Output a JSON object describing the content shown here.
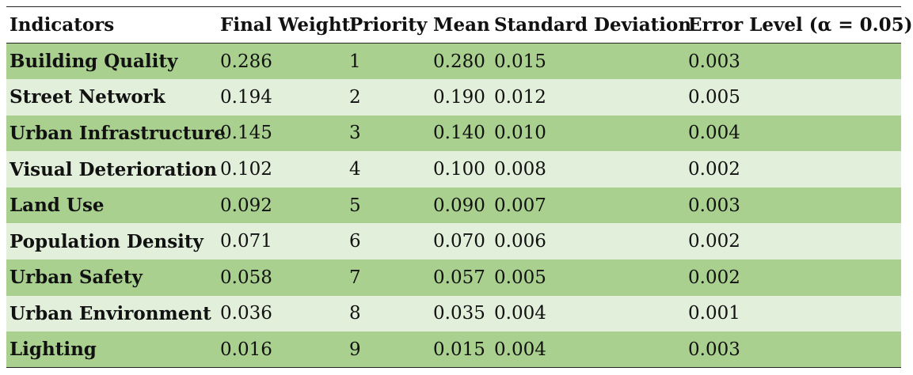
{
  "table": {
    "headers": [
      "Indicators",
      "Final Weight",
      "Priority",
      "Mean",
      "Standard Deviation",
      "Error Level (α = 0.05)"
    ],
    "rows": [
      [
        "Building Quality",
        "0.286",
        "1",
        "0.280",
        "0.015",
        "0.003"
      ],
      [
        "Street Network",
        "0.194",
        "2",
        "0.190",
        "0.012",
        "0.005"
      ],
      [
        "Urban Infrastructure",
        "0.145",
        "3",
        "0.140",
        "0.010",
        "0.004"
      ],
      [
        "Visual Deterioration",
        "0.102",
        "4",
        "0.100",
        "0.008",
        "0.002"
      ],
      [
        "Land Use",
        "0.092",
        "5",
        "0.090",
        "0.007",
        "0.003"
      ],
      [
        "Population Density",
        "0.071",
        "6",
        "0.070",
        "0.006",
        "0.002"
      ],
      [
        "Urban Safety",
        "0.058",
        "7",
        "0.057",
        "0.005",
        "0.002"
      ],
      [
        "Urban Environment",
        "0.036",
        "8",
        "0.035",
        "0.004",
        "0.001"
      ],
      [
        "Lighting",
        "0.016",
        "9",
        "0.015",
        "0.004",
        "0.003"
      ]
    ]
  },
  "colors": {
    "row_dark": "#a9d08e",
    "row_light": "#e2efda"
  }
}
